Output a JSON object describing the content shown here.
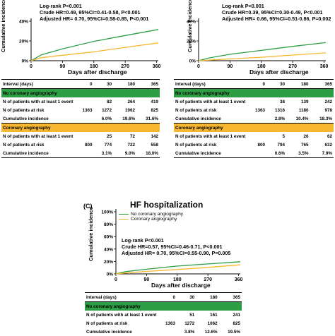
{
  "colors": {
    "no_cag": "#2e9e45",
    "cag": "#f7b731"
  },
  "common": {
    "ylabel": "Cumulative incidence",
    "xlabel": "Days after discharge",
    "xticks": [
      "0",
      "90",
      "180",
      "270",
      "360"
    ],
    "yticks_short": [
      "0%",
      "20%",
      "40%"
    ],
    "yticks_full": [
      "0%",
      "20%",
      "40%",
      "60%",
      "80%",
      "100%"
    ],
    "interval_label": "Interval (days)",
    "intervals": [
      "0",
      "30",
      "180",
      "365"
    ],
    "row_events": "N of patients with at least 1 event",
    "row_risk": "N of patients at risk",
    "row_cum": "Cumulative incidence",
    "group_no": "No coronary angiography",
    "group_yes": "Coronary angiography"
  },
  "panel_a": {
    "stats": [
      "Log-rank P<0.001",
      "Crude HR=0.49, 95%CI=0.41-0.58, P<0.001",
      "Adjusted HR= 0.70, 95%CI=0.58-0.85, P<0.001"
    ],
    "table": {
      "no": {
        "events": [
          "",
          "82",
          "264",
          "419"
        ],
        "risk": [
          "1363",
          "1272",
          "1062",
          "825"
        ],
        "cum": [
          "",
          "6.0%",
          "19.6%",
          "31.6%"
        ]
      },
      "yes": {
        "events": [
          "",
          "25",
          "72",
          "142"
        ],
        "risk": [
          "800",
          "774",
          "722",
          "558"
        ],
        "cum": [
          "",
          "3.1%",
          "9.0%",
          "18.0%"
        ]
      }
    }
  },
  "panel_b": {
    "stats": [
      "Log-rank P<0.001",
      "Crude HR=0.39, 95%CI=0.30-0.49, P<0.001",
      "Adjusted HR= 0.66, 95%CI=0.51-0.86, P=0.002"
    ],
    "table": {
      "no": {
        "events": [
          "",
          "38",
          "139",
          "242"
        ],
        "risk": [
          "1363",
          "1316",
          "1180",
          "978"
        ],
        "cum": [
          "",
          "2.8%",
          "10.4%",
          "18.3%"
        ]
      },
      "yes": {
        "events": [
          "",
          "5",
          "26",
          "62"
        ],
        "risk": [
          "800",
          "794",
          "765",
          "632"
        ],
        "cum": [
          "",
          "0.6%",
          "3.5%",
          "7.9%"
        ]
      }
    }
  },
  "panel_c": {
    "label": "(C)",
    "title": "HF hospitalization",
    "legend": [
      "No coronary angiography",
      "Coronary angiography"
    ],
    "stats": [
      "Log-rank P<0.001",
      "Crude HR=0.57, 95%CI=0.46-0.71, P<0.001",
      "Adjusted HR= 0.70, 95%CI=0.55-0.90, P=0.005"
    ],
    "table": {
      "no": {
        "events": [
          "",
          "51",
          "161",
          "241"
        ],
        "risk": [
          "1363",
          "1272",
          "1062",
          "825"
        ],
        "cum": [
          "",
          "3.8%",
          "12.6%",
          "19.5%"
        ]
      }
    }
  },
  "chart_data": [
    {
      "type": "line",
      "panel": "A",
      "xlabel": "Days after discharge",
      "ylabel": "Cumulative incidence",
      "xlim": [
        0,
        365
      ],
      "ylim": [
        0,
        40
      ],
      "series": [
        {
          "name": "No coronary angiography",
          "x": [
            0,
            30,
            90,
            180,
            270,
            365
          ],
          "y": [
            0,
            6.0,
            12,
            19.6,
            25.5,
            31.6
          ]
        },
        {
          "name": "Coronary angiography",
          "x": [
            0,
            30,
            90,
            180,
            270,
            365
          ],
          "y": [
            0,
            3.1,
            5.5,
            9.0,
            13.5,
            18.0
          ]
        }
      ]
    },
    {
      "type": "line",
      "panel": "B",
      "xlabel": "Days after discharge",
      "ylabel": "Cumulative incidence",
      "xlim": [
        0,
        365
      ],
      "ylim": [
        0,
        40
      ],
      "series": [
        {
          "name": "No coronary angiography",
          "x": [
            0,
            30,
            90,
            180,
            270,
            365
          ],
          "y": [
            0,
            2.8,
            6.5,
            10.4,
            14.5,
            18.3
          ]
        },
        {
          "name": "Coronary angiography",
          "x": [
            0,
            30,
            90,
            180,
            270,
            365
          ],
          "y": [
            0,
            0.6,
            1.8,
            3.5,
            5.7,
            7.9
          ]
        }
      ]
    },
    {
      "type": "line",
      "panel": "C",
      "title": "HF hospitalization",
      "xlabel": "Days after discharge",
      "ylabel": "Cumulative incidence",
      "xlim": [
        0,
        365
      ],
      "ylim": [
        0,
        100
      ],
      "series": [
        {
          "name": "No coronary angiography",
          "x": [
            0,
            30,
            90,
            180,
            270,
            365
          ],
          "y": [
            0,
            3.8,
            7.5,
            12.6,
            16,
            19.5
          ]
        },
        {
          "name": "Coronary angiography",
          "x": [
            0,
            30,
            90,
            180,
            270,
            365
          ],
          "y": [
            0,
            1.5,
            4,
            7,
            10.5,
            14.5
          ]
        }
      ]
    }
  ]
}
